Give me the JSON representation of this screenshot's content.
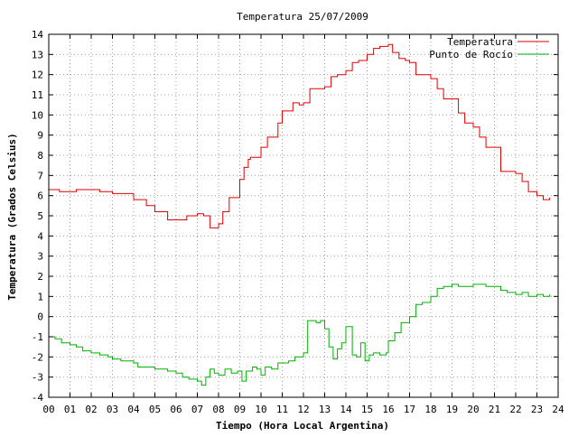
{
  "chart_data": {
    "type": "line",
    "title": "Temperatura 25/07/2009",
    "xlabel": "Tiempo (Hora Local Argentina)",
    "ylabel": "Temperatura (Grados Celsius)",
    "xlim": [
      0,
      24
    ],
    "ylim": [
      -4,
      14
    ],
    "x_ticks": [
      "00",
      "01",
      "02",
      "03",
      "04",
      "05",
      "06",
      "07",
      "08",
      "09",
      "10",
      "11",
      "12",
      "13",
      "14",
      "15",
      "16",
      "17",
      "18",
      "19",
      "20",
      "21",
      "22",
      "23",
      "24"
    ],
    "y_ticks": [
      -4,
      -3,
      -2,
      -1,
      0,
      1,
      2,
      3,
      4,
      5,
      6,
      7,
      8,
      9,
      10,
      11,
      12,
      13,
      14
    ],
    "grid": true,
    "legend_position": "top-right",
    "series": [
      {
        "name": "Temperatura",
        "color": "#e00000",
        "x": [
          0,
          0.5,
          1,
          1.3,
          2,
          2.4,
          3,
          3.5,
          4,
          4.3,
          4.6,
          5,
          5.3,
          5.6,
          6,
          6.5,
          7,
          7.3,
          7.6,
          8,
          8.2,
          8.5,
          8.8,
          9,
          9.2,
          9.4,
          9.5,
          9.7,
          10,
          10.3,
          10.5,
          10.8,
          11,
          11.5,
          11.8,
          12,
          12.3,
          12.5,
          13,
          13.3,
          13.6,
          14,
          14.3,
          14.6,
          15,
          15.3,
          15.6,
          16,
          16.2,
          16.5,
          16.8,
          17,
          17.3,
          17.6,
          18,
          18.3,
          18.6,
          19,
          19.3,
          19.6,
          20,
          20.3,
          20.6,
          21,
          21.3,
          21.6,
          22,
          22.3,
          22.6,
          23,
          23.3,
          23.6
        ],
        "y": [
          6.3,
          6.2,
          6.2,
          6.3,
          6.3,
          6.2,
          6.1,
          6.1,
          5.8,
          5.8,
          5.5,
          5.2,
          5.2,
          4.8,
          4.8,
          5.0,
          5.1,
          5.0,
          4.4,
          4.6,
          5.2,
          5.9,
          5.9,
          6.8,
          7.4,
          7.8,
          7.9,
          7.9,
          8.4,
          8.9,
          8.9,
          9.6,
          10.2,
          10.6,
          10.5,
          10.6,
          11.3,
          11.3,
          11.4,
          11.9,
          12.0,
          12.2,
          12.6,
          12.7,
          13.0,
          13.3,
          13.4,
          13.5,
          13.1,
          12.8,
          12.7,
          12.6,
          12.0,
          12.0,
          11.8,
          11.3,
          10.8,
          10.8,
          10.1,
          9.6,
          9.4,
          8.9,
          8.4,
          8.4,
          7.2,
          7.2,
          7.1,
          6.7,
          6.2,
          6.0,
          5.8,
          5.9
        ]
      },
      {
        "name": "Punto de Rocío",
        "color": "#00b000",
        "x": [
          0,
          0.3,
          0.6,
          1,
          1.3,
          1.6,
          2,
          2.4,
          2.8,
          3,
          3.4,
          3.8,
          4,
          4.2,
          4.4,
          4.6,
          5,
          5.3,
          5.6,
          6,
          6.3,
          6.6,
          7,
          7.2,
          7.4,
          7.6,
          7.8,
          8,
          8.3,
          8.6,
          8.9,
          9.1,
          9.3,
          9.6,
          9.8,
          10,
          10.2,
          10.5,
          10.8,
          11,
          11.3,
          11.6,
          12,
          12.2,
          12.4,
          12.6,
          12.8,
          13,
          13.2,
          13.4,
          13.6,
          13.8,
          14,
          14.3,
          14.5,
          14.7,
          14.9,
          15.1,
          15.3,
          15.6,
          15.9,
          16,
          16.3,
          16.6,
          17,
          17.3,
          17.6,
          18,
          18.3,
          18.6,
          19,
          19.3,
          19.6,
          20,
          20.3,
          20.6,
          21,
          21.3,
          21.6,
          22,
          22.3,
          22.6,
          23,
          23.3,
          23.6
        ],
        "y": [
          -1.0,
          -1.1,
          -1.3,
          -1.4,
          -1.5,
          -1.7,
          -1.8,
          -1.9,
          -2.0,
          -2.1,
          -2.2,
          -2.2,
          -2.3,
          -2.5,
          -2.5,
          -2.5,
          -2.6,
          -2.6,
          -2.7,
          -2.8,
          -3.0,
          -3.1,
          -3.2,
          -3.4,
          -3.0,
          -2.6,
          -2.8,
          -2.9,
          -2.6,
          -2.8,
          -2.7,
          -3.2,
          -2.7,
          -2.5,
          -2.6,
          -2.9,
          -2.5,
          -2.6,
          -2.3,
          -2.3,
          -2.2,
          -2.0,
          -1.8,
          -0.2,
          -0.2,
          -0.3,
          -0.2,
          -0.6,
          -1.5,
          -2.1,
          -1.6,
          -1.3,
          -0.5,
          -1.9,
          -2.0,
          -1.3,
          -2.2,
          -1.9,
          -1.8,
          -1.9,
          -1.8,
          -1.2,
          -0.8,
          -0.3,
          0.0,
          0.6,
          0.7,
          1.0,
          1.4,
          1.5,
          1.6,
          1.5,
          1.5,
          1.6,
          1.6,
          1.5,
          1.5,
          1.3,
          1.2,
          1.1,
          1.2,
          1.0,
          1.1,
          1.0,
          1.1
        ]
      }
    ]
  }
}
